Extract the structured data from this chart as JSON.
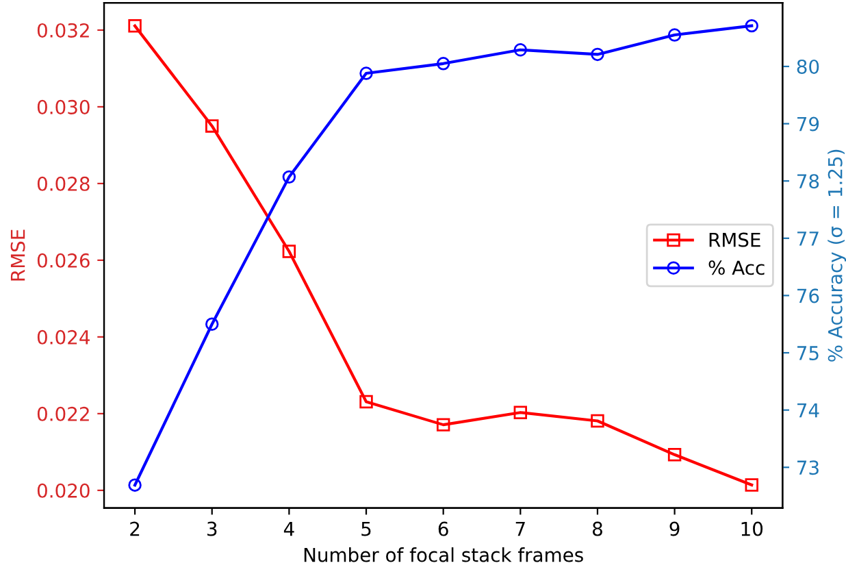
{
  "chart_data": {
    "type": "line",
    "xlabel": "Number of focal stack frames",
    "ylabel": "RMSE",
    "y2label": "% Accuracy (σ = 1.25)",
    "x": [
      2,
      3,
      4,
      5,
      6,
      7,
      8,
      9,
      10
    ],
    "series": [
      {
        "name": "RMSE",
        "color": "#ff0000",
        "marker": "square",
        "values": [
          0.03211,
          0.0295,
          0.02623,
          0.02231,
          0.02171,
          0.02203,
          0.02181,
          0.02093,
          0.02014
        ]
      },
      {
        "name": "% Acc",
        "color": "#0000ff",
        "marker": "circle",
        "axis": "y2",
        "values": [
          72.69,
          75.5,
          78.07,
          79.88,
          80.05,
          80.29,
          80.21,
          80.55,
          80.71
        ]
      }
    ],
    "xlim": [
      1.6,
      10.4
    ],
    "xticks": [
      2,
      3,
      4,
      5,
      6,
      7,
      8,
      9,
      10
    ],
    "ylim": [
      0.01954,
      0.03271
    ],
    "yticks": [
      {
        "value": 0.02,
        "label": "0.020"
      },
      {
        "value": 0.022,
        "label": "0.022"
      },
      {
        "value": 0.024,
        "label": "0.024"
      },
      {
        "value": 0.026,
        "label": "0.026"
      },
      {
        "value": 0.028,
        "label": "0.028"
      },
      {
        "value": 0.03,
        "label": "0.030"
      },
      {
        "value": 0.032,
        "label": "0.032"
      }
    ],
    "y2lim": [
      72.29,
      81.11
    ],
    "y2ticks": [
      73,
      74,
      75,
      76,
      77,
      78,
      79,
      80
    ],
    "legend": "center right",
    "grid": false
  }
}
